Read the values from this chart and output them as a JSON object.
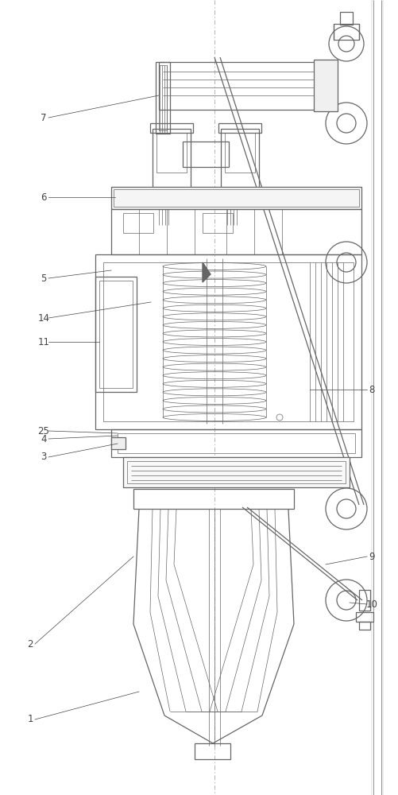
{
  "bg_color": "#ffffff",
  "lc": "#666666",
  "lc_dark": "#444444",
  "lw_thin": 0.5,
  "lw_med": 0.9,
  "lw_thick": 1.3,
  "fig_w": 5.01,
  "fig_h": 10.0,
  "dpi": 100
}
